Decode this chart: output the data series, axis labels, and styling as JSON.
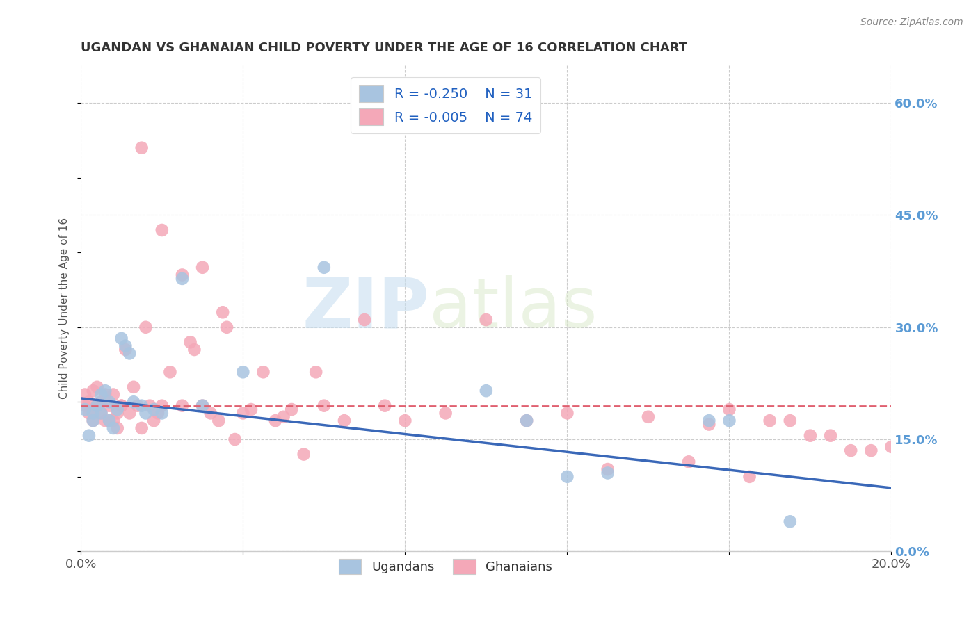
{
  "title": "UGANDAN VS GHANAIAN CHILD POVERTY UNDER THE AGE OF 16 CORRELATION CHART",
  "source": "Source: ZipAtlas.com",
  "ylabel": "Child Poverty Under the Age of 16",
  "xlim": [
    0.0,
    0.2
  ],
  "ylim": [
    0.0,
    0.65
  ],
  "xticks": [
    0.0,
    0.04,
    0.08,
    0.12,
    0.16,
    0.2
  ],
  "xtick_labels": [
    "0.0%",
    "",
    "",
    "",
    "",
    "20.0%"
  ],
  "yticks_right": [
    0.0,
    0.15,
    0.3,
    0.45,
    0.6
  ],
  "ytick_labels_right": [
    "0.0%",
    "15.0%",
    "30.0%",
    "45.0%",
    "60.0%"
  ],
  "grid_color": "#cccccc",
  "background_color": "#ffffff",
  "watermark_zip": "ZIP",
  "watermark_atlas": "atlas",
  "blue_color": "#a8c4e0",
  "pink_color": "#f4a8b8",
  "blue_line_color": "#3a68b8",
  "pink_line_color": "#e06070",
  "title_color": "#333333",
  "right_axis_color": "#5b9bd5",
  "legend_value_color": "#2060c0",
  "legend_label_color": "#333333",
  "ugandans_x": [
    0.001,
    0.002,
    0.003,
    0.003,
    0.004,
    0.005,
    0.005,
    0.006,
    0.007,
    0.007,
    0.008,
    0.009,
    0.01,
    0.011,
    0.012,
    0.013,
    0.015,
    0.016,
    0.018,
    0.02,
    0.025,
    0.03,
    0.04,
    0.06,
    0.1,
    0.11,
    0.12,
    0.13,
    0.155,
    0.16,
    0.175
  ],
  "ugandans_y": [
    0.19,
    0.155,
    0.185,
    0.175,
    0.195,
    0.21,
    0.185,
    0.215,
    0.2,
    0.175,
    0.165,
    0.19,
    0.285,
    0.275,
    0.265,
    0.2,
    0.195,
    0.185,
    0.19,
    0.185,
    0.365,
    0.195,
    0.24,
    0.38,
    0.215,
    0.175,
    0.1,
    0.105,
    0.175,
    0.175,
    0.04
  ],
  "ghanaians_x": [
    0.001,
    0.001,
    0.002,
    0.002,
    0.003,
    0.003,
    0.004,
    0.004,
    0.005,
    0.005,
    0.006,
    0.006,
    0.007,
    0.007,
    0.008,
    0.008,
    0.009,
    0.009,
    0.01,
    0.01,
    0.011,
    0.012,
    0.013,
    0.014,
    0.015,
    0.016,
    0.017,
    0.018,
    0.019,
    0.02,
    0.022,
    0.025,
    0.027,
    0.028,
    0.03,
    0.032,
    0.034,
    0.036,
    0.038,
    0.04,
    0.042,
    0.045,
    0.048,
    0.05,
    0.052,
    0.055,
    0.058,
    0.06,
    0.065,
    0.07,
    0.075,
    0.08,
    0.09,
    0.1,
    0.11,
    0.12,
    0.13,
    0.14,
    0.15,
    0.155,
    0.16,
    0.165,
    0.17,
    0.175,
    0.18,
    0.185,
    0.19,
    0.195,
    0.2,
    0.015,
    0.02,
    0.025,
    0.03,
    0.035
  ],
  "ghanaians_y": [
    0.21,
    0.195,
    0.185,
    0.2,
    0.215,
    0.175,
    0.22,
    0.195,
    0.185,
    0.2,
    0.175,
    0.21,
    0.175,
    0.195,
    0.21,
    0.175,
    0.185,
    0.165,
    0.195,
    0.195,
    0.27,
    0.185,
    0.22,
    0.195,
    0.165,
    0.3,
    0.195,
    0.175,
    0.185,
    0.195,
    0.24,
    0.195,
    0.28,
    0.27,
    0.195,
    0.185,
    0.175,
    0.3,
    0.15,
    0.185,
    0.19,
    0.24,
    0.175,
    0.18,
    0.19,
    0.13,
    0.24,
    0.195,
    0.175,
    0.31,
    0.195,
    0.175,
    0.185,
    0.31,
    0.175,
    0.185,
    0.11,
    0.18,
    0.12,
    0.17,
    0.19,
    0.1,
    0.175,
    0.175,
    0.155,
    0.155,
    0.135,
    0.135,
    0.14,
    0.54,
    0.43,
    0.37,
    0.38,
    0.32
  ]
}
